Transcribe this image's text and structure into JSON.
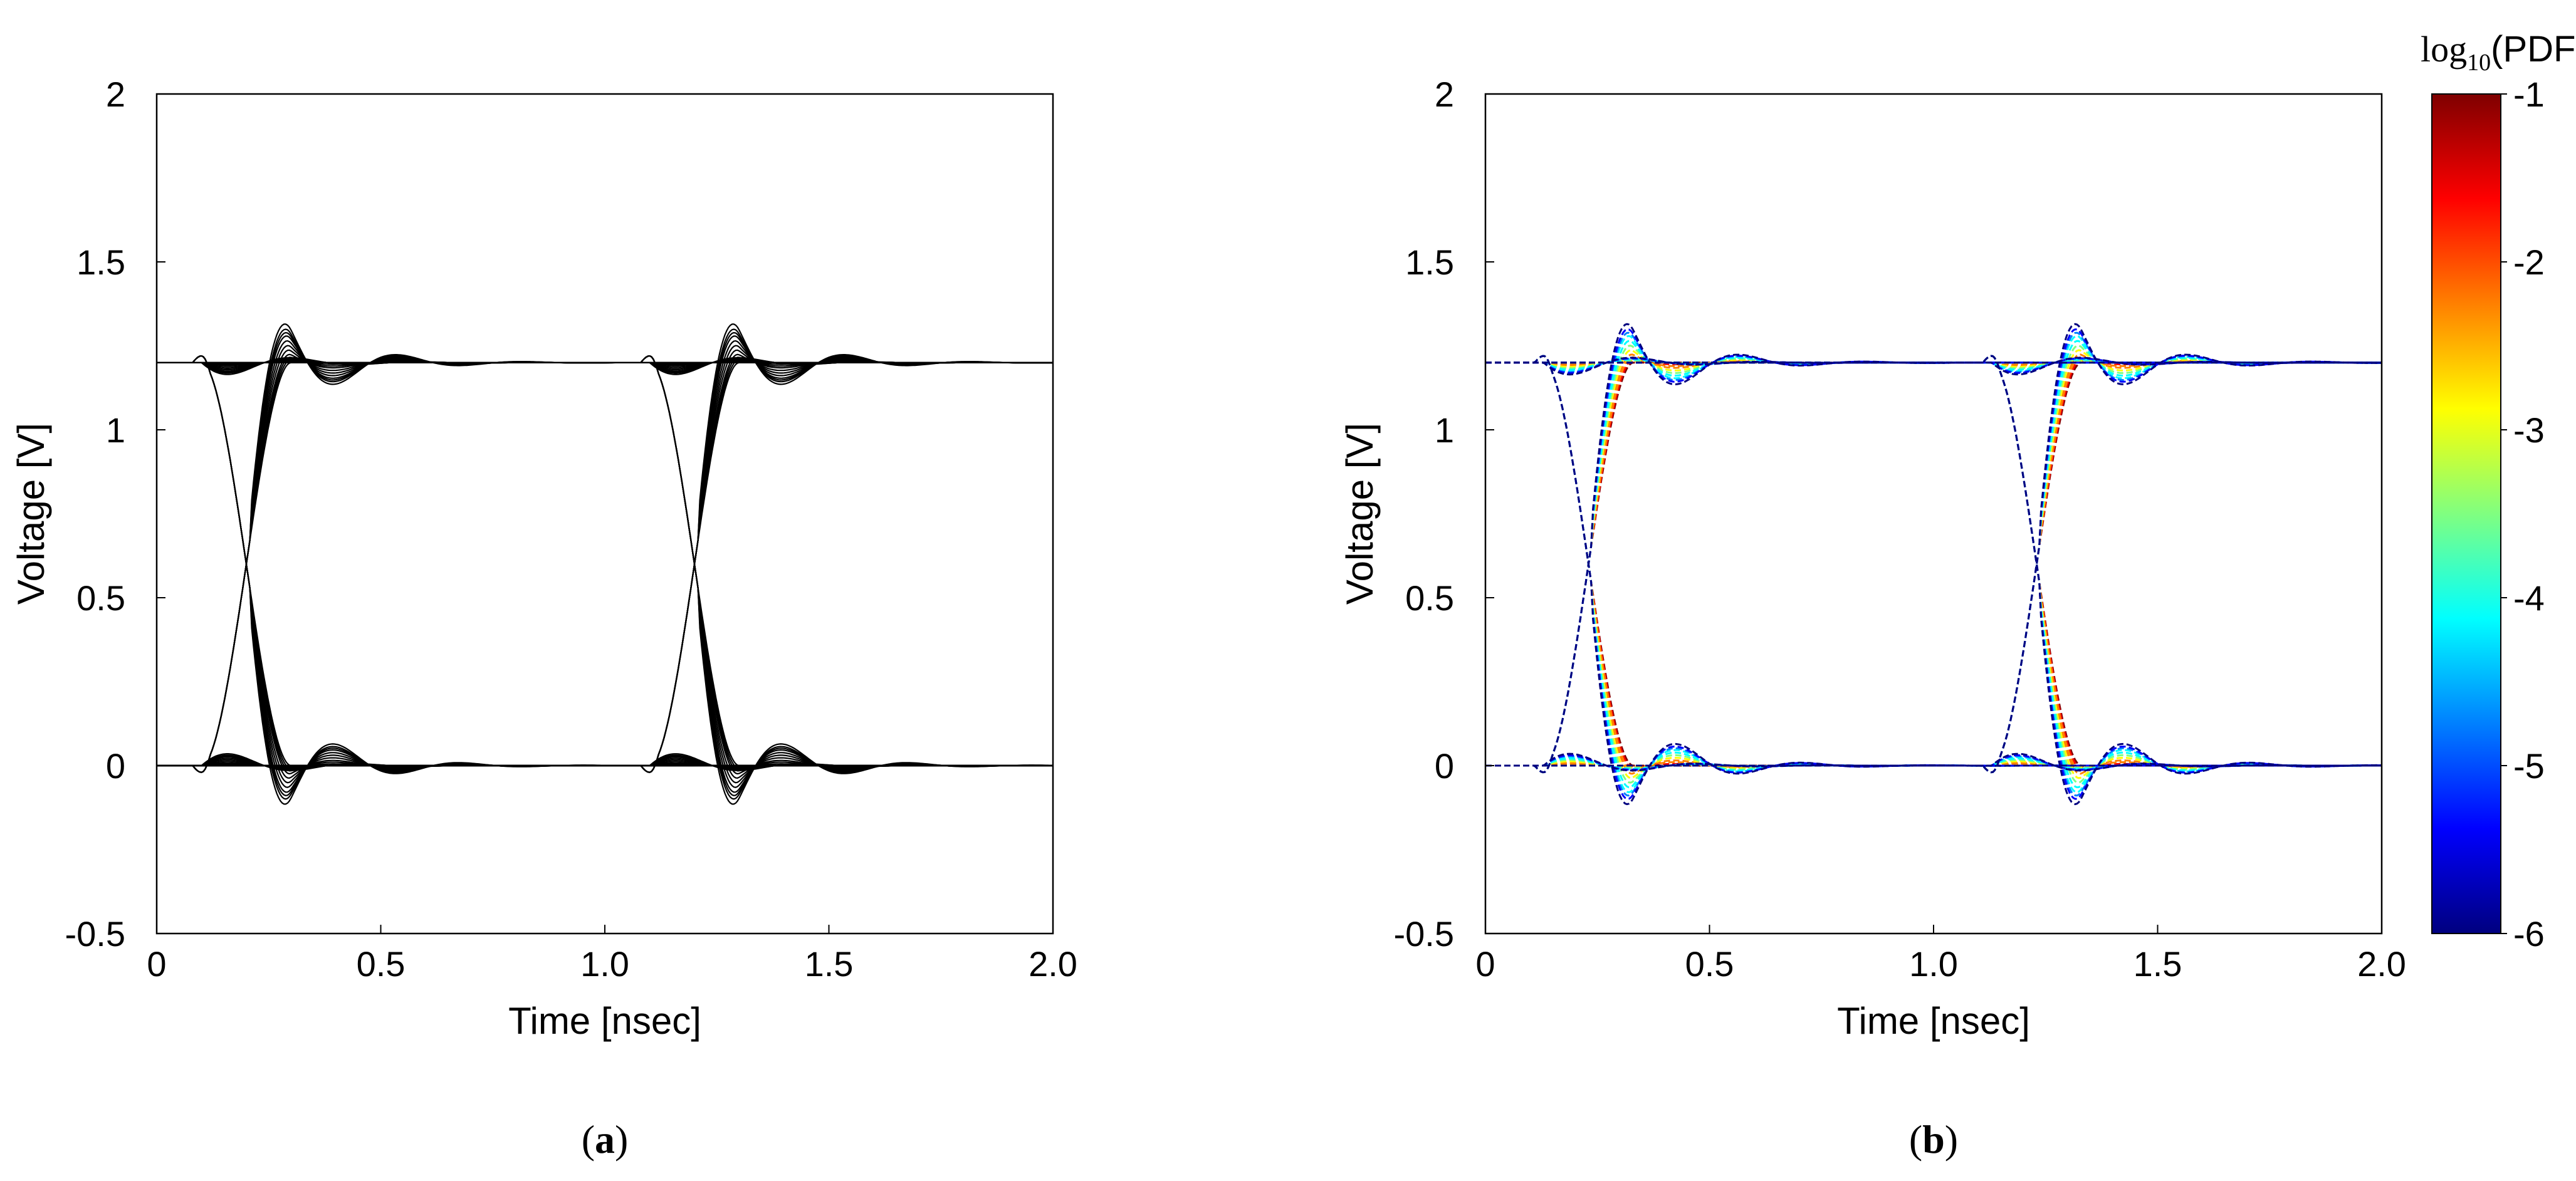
{
  "chart_data": [
    {
      "type": "line",
      "panel_label": "a",
      "title": "",
      "xlabel": "Time [nsec]",
      "ylabel": "Voltage [V]",
      "xlim": [
        0,
        2.0
      ],
      "ylim": [
        -0.5,
        2
      ],
      "xticks": [
        0,
        0.5,
        1.0,
        1.5,
        2.0
      ],
      "xtick_labels": [
        "0",
        "0.5",
        "1.0",
        "1.5",
        "2.0"
      ],
      "yticks": [
        -0.5,
        0,
        0.5,
        1,
        1.5,
        2
      ],
      "ytick_labels": [
        "-0.5",
        "0",
        "0.5",
        "1",
        "1.5",
        "2"
      ],
      "grid": false,
      "trace_color": "#000000",
      "description_series": {
        "high_level": 1.2,
        "low_level": 0.0,
        "transition_start_times": [
          0.1,
          1.1
        ],
        "transition_crossing_times": [
          0.2,
          1.2
        ],
        "peak_overshoot_times": [
          0.3,
          1.3
        ],
        "max_overshoot_high": 1.45,
        "max_undershoot_low": -0.15,
        "ringing_amplitudes": [
          0.0,
          0.02,
          0.04,
          0.06,
          0.09,
          0.12,
          0.15,
          0.18,
          0.2,
          0.22,
          0.25
        ]
      }
    },
    {
      "type": "line",
      "panel_label": "b",
      "title": "",
      "xlabel": "Time [nsec]",
      "ylabel": "Voltage [V]",
      "xlim": [
        0,
        2.0
      ],
      "ylim": [
        -0.5,
        2
      ],
      "xticks": [
        0,
        0.5,
        1.0,
        1.5,
        2.0
      ],
      "xtick_labels": [
        "0",
        "0.5",
        "1.0",
        "1.5",
        "2.0"
      ],
      "yticks": [
        -0.5,
        0,
        0.5,
        1,
        1.5,
        2
      ],
      "ytick_labels": [
        "-0.5",
        "0",
        "0.5",
        "1",
        "1.5",
        "2"
      ],
      "grid": false,
      "colorbar": {
        "label_prefix": "log",
        "label_subscript": "10",
        "label_suffix": "(PDF)",
        "range": [
          -6,
          -1
        ],
        "ticks": [
          -1,
          -2,
          -3,
          -4,
          -5,
          -6
        ],
        "tick_labels": [
          "-1",
          "-2",
          "-3",
          "-4",
          "-5",
          "-6"
        ],
        "colormap": [
          "#7f0000",
          "#ff0000",
          "#ff8000",
          "#ffff00",
          "#80ff80",
          "#00ffff",
          "#0080ff",
          "#0000ff",
          "#00007f"
        ]
      },
      "description_series": {
        "high_level": 1.2,
        "low_level": 0.0,
        "transition_start_times": [
          0.13,
          1.13
        ],
        "transition_crossing_times": [
          0.23,
          1.23
        ],
        "peak_overshoot_times": [
          0.33,
          1.33
        ],
        "max_overshoot_high": 1.45,
        "max_undershoot_low": -0.15,
        "ringing_amplitudes": [
          0.0,
          0.02,
          0.04,
          0.06,
          0.09,
          0.12,
          0.15,
          0.18,
          0.2,
          0.22,
          0.25
        ],
        "ringing_log_pdf": [
          -1.1,
          -1.6,
          -2.1,
          -2.5,
          -3.0,
          -3.4,
          -3.9,
          -4.3,
          -4.8,
          -5.3,
          -5.8
        ]
      }
    }
  ]
}
